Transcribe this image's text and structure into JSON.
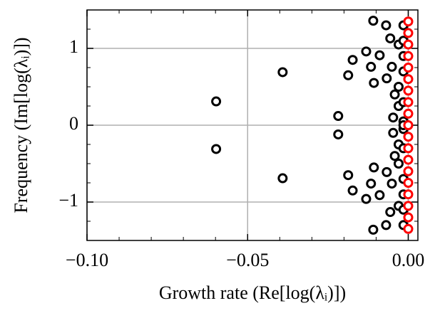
{
  "chart_data": {
    "type": "scatter",
    "xlabel": "Growth rate (Re[log(λᵢ)])",
    "ylabel": "Frequency (Im[log(λᵢ)])",
    "xlim": [
      -0.1,
      0.003
    ],
    "ylim": [
      -1.5,
      1.5
    ],
    "xticks": [
      {
        "value": -0.1,
        "label": "−0.10"
      },
      {
        "value": -0.05,
        "label": "−0.05"
      },
      {
        "value": 0,
        "label": "0.00"
      }
    ],
    "yticks": [
      {
        "value": -1,
        "label": "−1"
      },
      0,
      1
    ],
    "xminorticks": [
      -0.09,
      -0.08,
      -0.07,
      -0.06,
      -0.04,
      -0.03,
      -0.02,
      -0.01
    ],
    "yminorticks": [
      -1.25,
      -0.75,
      -0.5,
      -0.25,
      0.25,
      0.5,
      0.75,
      1.25
    ],
    "grid": true,
    "series": [
      {
        "color": "#000000",
        "x": [
          -0.0598,
          -0.0598,
          -0.0391,
          -0.0391,
          -0.0218,
          -0.0218,
          -0.0187,
          -0.0187,
          -0.0173,
          -0.0173,
          -0.0131,
          -0.0131,
          -0.0116,
          -0.0116,
          -0.0109,
          -0.0109,
          -0.0107,
          -0.0107,
          -0.0089,
          -0.0089,
          -0.0069,
          -0.0069,
          -0.0067,
          -0.0067,
          -0.0056,
          -0.0056,
          -0.0051,
          -0.0051,
          -0.0047,
          -0.0047,
          -0.0042,
          -0.0042,
          -0.003,
          -0.003,
          -0.003,
          -0.003,
          -0.003,
          -0.003,
          -0.0015,
          -0.0015,
          -0.0015,
          -0.0015,
          -0.0015,
          -0.0015,
          -0.0015,
          -0.0015,
          -0.0015,
          -0.0015,
          -0.0015,
          -0.0015,
          -0.0015
        ],
        "y": [
          0.31,
          -0.31,
          0.69,
          -0.69,
          0.12,
          -0.12,
          0.65,
          -0.65,
          0.85,
          -0.85,
          0.96,
          -0.96,
          0.76,
          -0.76,
          1.36,
          -1.36,
          0.55,
          -0.55,
          0.91,
          -0.91,
          1.3,
          -1.3,
          0.61,
          -0.61,
          1.13,
          -1.13,
          0.76,
          -0.76,
          0.1,
          -0.1,
          0.4,
          -0.4,
          1.05,
          -1.05,
          0.25,
          -0.25,
          0.5,
          -0.5,
          1.3,
          -1.3,
          1.1,
          -1.1,
          0.9,
          -0.9,
          0.7,
          -0.7,
          0.3,
          -0.3,
          0.05,
          -0.05,
          0
        ]
      },
      {
        "color": "#ff0000",
        "x": [
          0,
          0,
          0,
          0,
          0,
          0,
          0,
          0,
          0,
          0,
          0,
          0,
          0,
          0,
          0,
          0,
          0,
          0,
          0
        ],
        "y": [
          -1.35,
          -1.2,
          -1.05,
          -0.9,
          -0.75,
          -0.6,
          -0.45,
          -0.3,
          -0.15,
          0,
          0.15,
          0.3,
          0.45,
          0.6,
          0.75,
          0.9,
          1.05,
          1.2,
          1.35
        ]
      }
    ]
  }
}
